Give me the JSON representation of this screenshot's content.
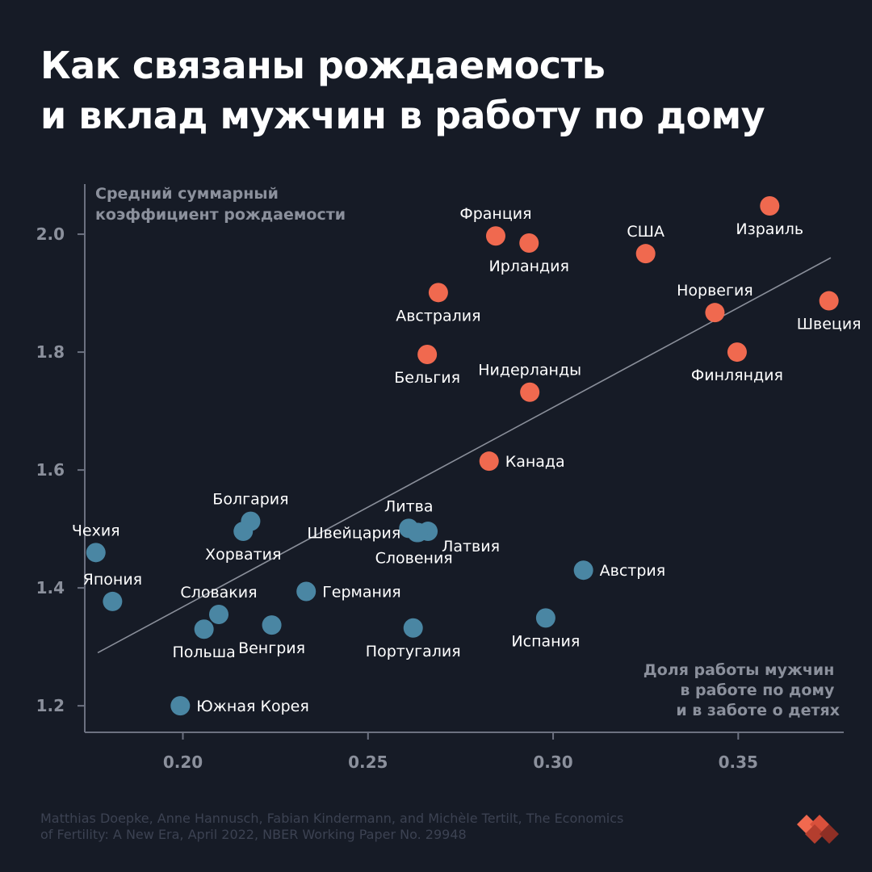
{
  "title": {
    "line1": "Как связаны рождаемость",
    "line2": "и вклад мужчин в работу по дому"
  },
  "source": {
    "line1": "Matthias Doepke, Anne Hannusch, Fabian Kindermann, and Michèle Tertilt, The Economics",
    "line2": "of Fertility: A New Era, April 2022, NBER Working Paper No. 29948"
  },
  "colors": {
    "background": "#161b26",
    "high_fertility": "#f0694f",
    "low_fertility": "#4a86a3",
    "axis": "#6c7180",
    "axis_label": "#8b909c",
    "trend_line": "#8a8f9a",
    "text": "#ffffff"
  },
  "chart_data": {
    "type": "scatter",
    "ylabel": [
      "Средний суммарный",
      "коэффициент рождаемости"
    ],
    "xlabel": [
      "Доля работы мужчин",
      "в работе по дому",
      "и в заботе о детях"
    ],
    "x_ticks": [
      {
        "v": 0.2,
        "label": "0.20"
      },
      {
        "v": 0.25,
        "label": "0.25"
      },
      {
        "v": 0.3,
        "label": "0.30"
      },
      {
        "v": 0.35,
        "label": "0.35"
      }
    ],
    "y_ticks": [
      {
        "v": 1.2,
        "label": "1.2"
      },
      {
        "v": 1.4,
        "label": "1.4"
      },
      {
        "v": 1.6,
        "label": "1.6"
      },
      {
        "v": 1.8,
        "label": "1.8"
      },
      {
        "v": 2.0,
        "label": "2.0"
      }
    ],
    "xlim": [
      0.1735,
      0.3785
    ],
    "ylim": [
      1.155,
      2.085
    ],
    "grid": false,
    "trend_line": {
      "x1": 0.177,
      "y1": 1.29,
      "x2": 0.375,
      "y2": 1.96
    },
    "series": [
      {
        "color": "#f0694f",
        "points": [
          {
            "label": "Израиль",
            "x": 0.3585,
            "y": 2.048,
            "label_pos": "below"
          },
          {
            "label": "Франция",
            "x": 0.2845,
            "y": 1.997,
            "label_pos": "above"
          },
          {
            "label": "Ирландия",
            "x": 0.2935,
            "y": 1.985,
            "label_pos": "below"
          },
          {
            "label": "США",
            "x": 0.325,
            "y": 1.967,
            "label_pos": "above"
          },
          {
            "label": "Австралия",
            "x": 0.269,
            "y": 1.901,
            "label_pos": "below"
          },
          {
            "label": "Норвегия",
            "x": 0.3437,
            "y": 1.867,
            "label_pos": "above"
          },
          {
            "label": "Швеция",
            "x": 0.3745,
            "y": 1.887,
            "label_pos": "below"
          },
          {
            "label": "Бельгия",
            "x": 0.266,
            "y": 1.796,
            "label_pos": "below"
          },
          {
            "label": "Финляндия",
            "x": 0.3497,
            "y": 1.8,
            "label_pos": "below"
          },
          {
            "label": "Нидерланды",
            "x": 0.2937,
            "y": 1.732,
            "label_pos": "above"
          },
          {
            "label": "Канада",
            "x": 0.2827,
            "y": 1.615,
            "label_pos": "right"
          }
        ]
      },
      {
        "color": "#4a86a3",
        "points": [
          {
            "label": "Болгария",
            "x": 0.2183,
            "y": 1.513,
            "label_pos": "above"
          },
          {
            "label": "Хорватия",
            "x": 0.2163,
            "y": 1.496,
            "label_pos": "below"
          },
          {
            "label": "Чехия",
            "x": 0.1765,
            "y": 1.46,
            "label_pos": "above"
          },
          {
            "label": "Литва",
            "x": 0.261,
            "y": 1.501,
            "label_pos": "above"
          },
          {
            "label": "Швейцария",
            "x": 0.2632,
            "y": 1.494,
            "label_pos": "left"
          },
          {
            "label": "Латвия",
            "x": 0.2662,
            "y": 1.496,
            "label_pos": "below-right"
          },
          {
            "label": "Словения",
            "x": 0.2635,
            "y": 1.494,
            "label_pos": "below-left"
          },
          {
            "label": "Япония",
            "x": 0.181,
            "y": 1.377,
            "label_pos": "above"
          },
          {
            "label": "Германия",
            "x": 0.2333,
            "y": 1.394,
            "label_pos": "right"
          },
          {
            "label": "Австрия",
            "x": 0.3082,
            "y": 1.43,
            "label_pos": "right"
          },
          {
            "label": "Словакия",
            "x": 0.2097,
            "y": 1.355,
            "label_pos": "above"
          },
          {
            "label": "Польша",
            "x": 0.2057,
            "y": 1.33,
            "label_pos": "below"
          },
          {
            "label": "Венгрия",
            "x": 0.224,
            "y": 1.337,
            "label_pos": "below"
          },
          {
            "label": "Португалия",
            "x": 0.2622,
            "y": 1.332,
            "label_pos": "below"
          },
          {
            "label": "Испания",
            "x": 0.298,
            "y": 1.349,
            "label_pos": "below"
          },
          {
            "label": "Южная Корея",
            "x": 0.1993,
            "y": 1.2,
            "label_pos": "right"
          }
        ]
      }
    ]
  }
}
